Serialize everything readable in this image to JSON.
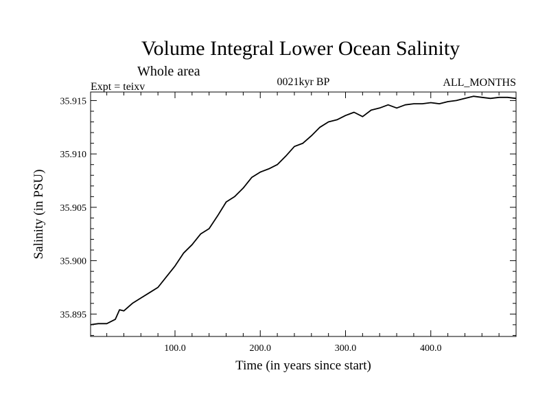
{
  "chart_data": {
    "type": "line",
    "title": "Volume Integral Lower Ocean Salinity",
    "subtitle": "Whole area",
    "experiment": "Expt = teixv",
    "period": "0021kyr BP",
    "months": "ALL_MONTHS",
    "xlabel": "Time (in years since start)",
    "ylabel": "Salinity (in PSU)",
    "xlim": [
      1,
      500
    ],
    "ylim": [
      35.8929,
      35.9158
    ],
    "x_ticks": [
      {
        "value": 100,
        "label": "100.0"
      },
      {
        "value": 200,
        "label": "200.0"
      },
      {
        "value": 300,
        "label": "300.0"
      },
      {
        "value": 400,
        "label": "400.0"
      }
    ],
    "y_ticks": [
      {
        "value": 35.895,
        "label": "35.895"
      },
      {
        "value": 35.9,
        "label": "35.900"
      },
      {
        "value": 35.905,
        "label": "35.905"
      },
      {
        "value": 35.91,
        "label": "35.910"
      },
      {
        "value": 35.915,
        "label": "35.915"
      }
    ],
    "grid": false,
    "series": [
      {
        "color": "#000000",
        "x": [
          1,
          10,
          20,
          30,
          35,
          40,
          50,
          60,
          70,
          80,
          90,
          100,
          110,
          120,
          130,
          140,
          150,
          160,
          170,
          180,
          190,
          200,
          210,
          220,
          230,
          240,
          250,
          260,
          270,
          280,
          290,
          300,
          310,
          320,
          330,
          340,
          350,
          360,
          370,
          380,
          390,
          400,
          410,
          420,
          430,
          440,
          450,
          460,
          470,
          480,
          490,
          500
        ],
        "y": [
          35.894,
          35.8941,
          35.8941,
          35.8945,
          35.8954,
          35.8953,
          35.896,
          35.8965,
          35.897,
          35.8975,
          35.8985,
          35.8995,
          35.9007,
          35.9015,
          35.9025,
          35.903,
          35.9042,
          35.9055,
          35.906,
          35.9068,
          35.9078,
          35.9083,
          35.9086,
          35.909,
          35.9098,
          35.9107,
          35.911,
          35.9117,
          35.9125,
          35.913,
          35.9132,
          35.9136,
          35.9139,
          35.9135,
          35.9141,
          35.9143,
          35.9146,
          35.9143,
          35.9146,
          35.9147,
          35.9147,
          35.9148,
          35.9147,
          35.9149,
          35.915,
          35.9152,
          35.9154,
          35.9153,
          35.9152,
          35.9153,
          35.9153,
          35.9152
        ]
      }
    ]
  }
}
